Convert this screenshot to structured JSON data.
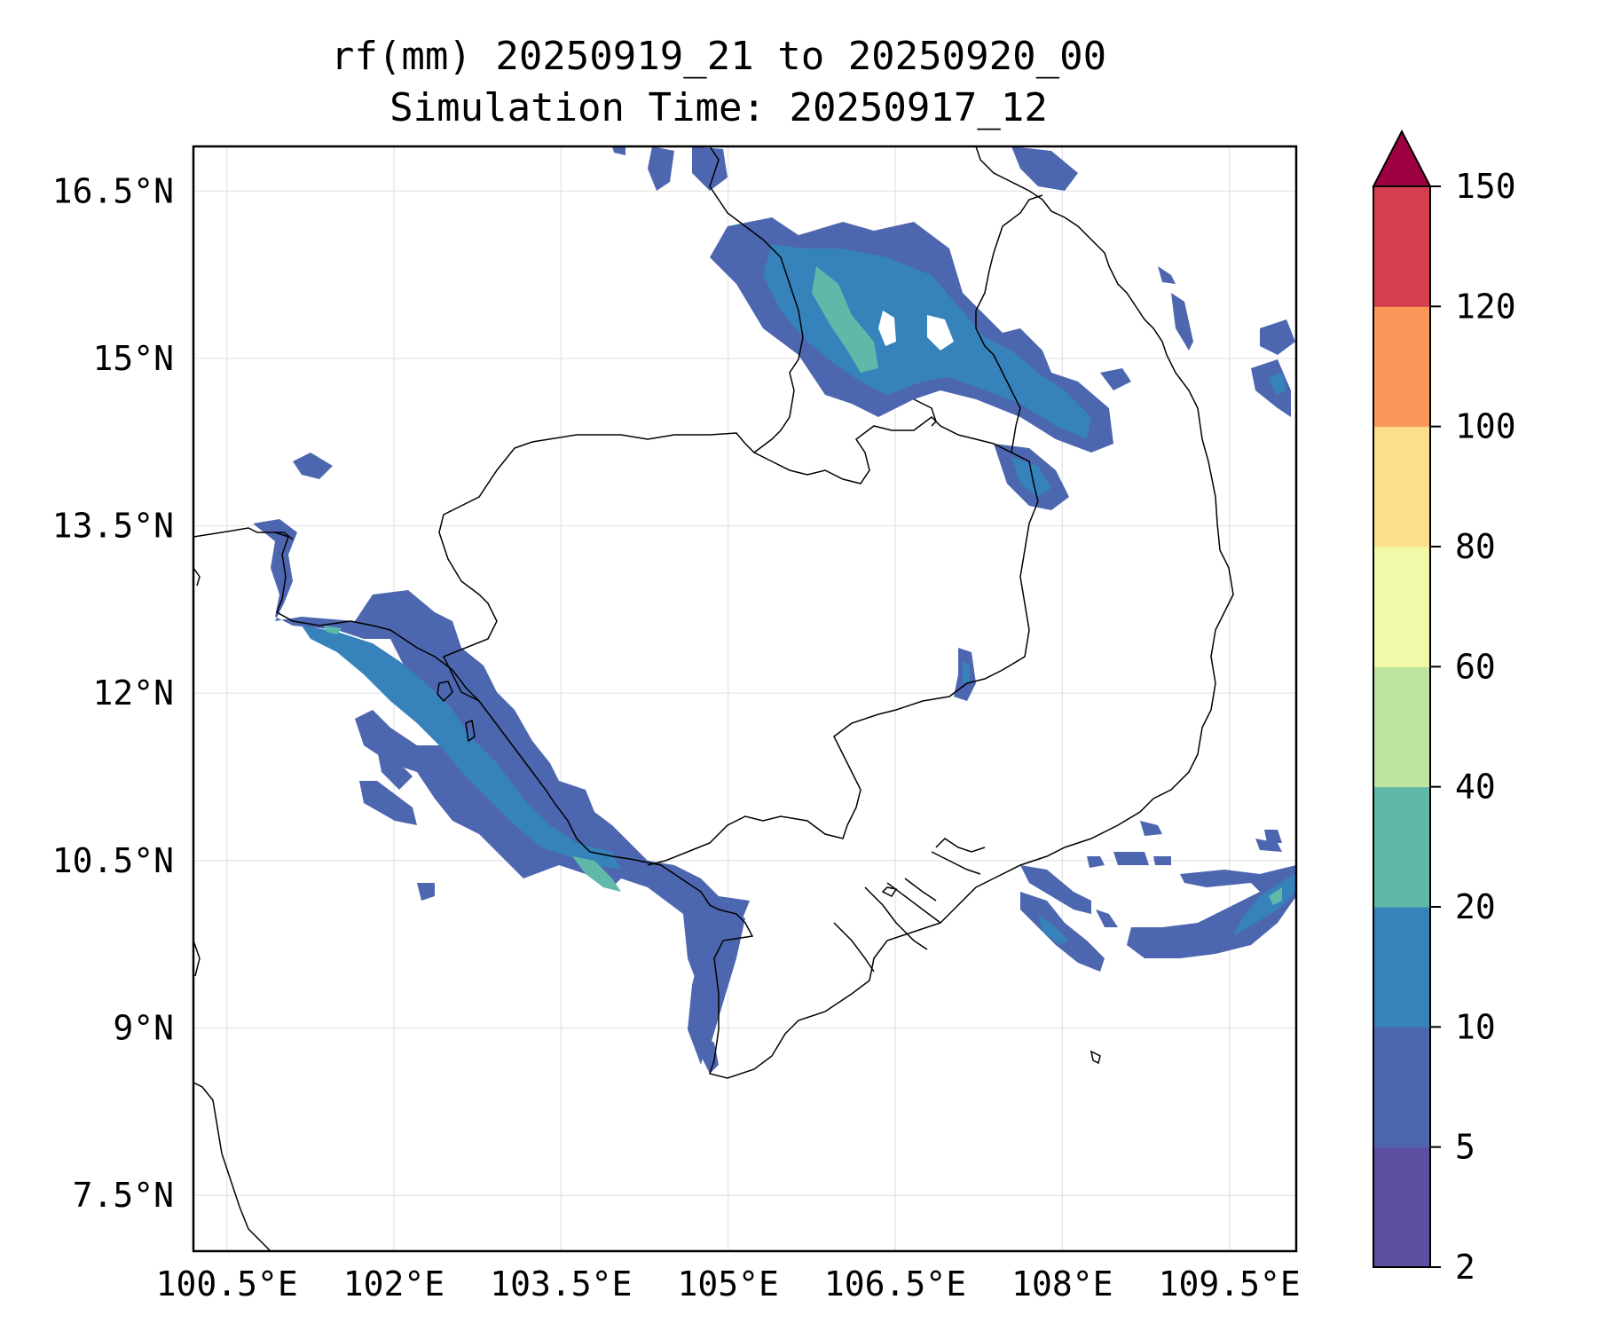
{
  "title": {
    "line1": "rf(mm) 20250919_21 to 20250920_00",
    "line2": "Simulation Time: 20250917_12"
  },
  "map": {
    "extent": {
      "lon_min": 100.2,
      "lon_max": 110.1,
      "lat_min": 7.0,
      "lat_max": 16.9
    },
    "lon_ticks": [
      {
        "value": 100.5,
        "label": "100.5°E"
      },
      {
        "value": 102.0,
        "label": "102°E"
      },
      {
        "value": 103.5,
        "label": "103.5°E"
      },
      {
        "value": 105.0,
        "label": "105°E"
      },
      {
        "value": 106.5,
        "label": "106.5°E"
      },
      {
        "value": 108.0,
        "label": "108°E"
      },
      {
        "value": 109.5,
        "label": "109.5°E"
      }
    ],
    "lat_ticks": [
      {
        "value": 16.5,
        "label": "16.5°N"
      },
      {
        "value": 15.0,
        "label": "15°N"
      },
      {
        "value": 13.5,
        "label": "13.5°N"
      },
      {
        "value": 12.0,
        "label": "12°N"
      },
      {
        "value": 10.5,
        "label": "10.5°N"
      },
      {
        "value": 9.0,
        "label": "9°N"
      },
      {
        "value": 7.5,
        "label": "7.5°N"
      }
    ],
    "grid": true,
    "colorbar": {
      "levels": [
        "2",
        "5",
        "10",
        "20",
        "40",
        "60",
        "80",
        "100",
        "120",
        "150"
      ],
      "colors": [
        "#5e4fa2",
        "#4d66b0",
        "#3682ba",
        "#60b9a8",
        "#bee5a0",
        "#f1f9a9",
        "#fcdf8b",
        "#f99858",
        "#d53e4f",
        "#9e0142"
      ],
      "extend": "max"
    }
  }
}
